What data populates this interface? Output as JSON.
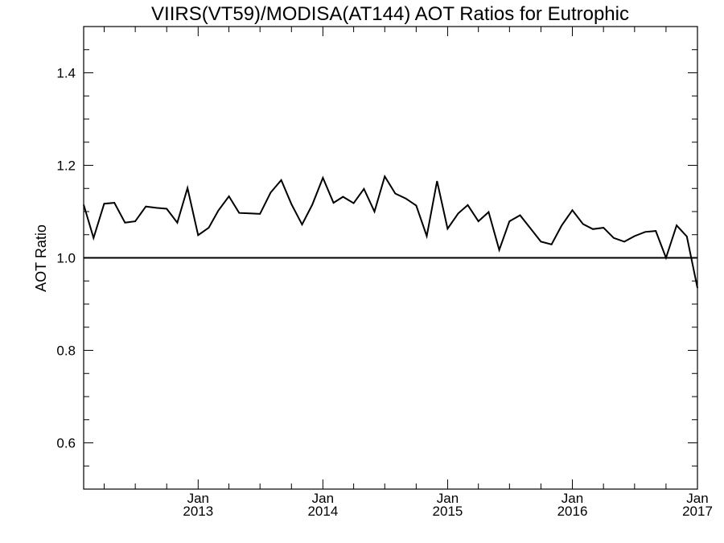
{
  "chart_data": {
    "type": "line",
    "title": "VIIRS(VT59)/MODISA(AT144)  AOT Ratios for Eutrophic",
    "xlabel": "",
    "ylabel": "AOT Ratio",
    "ylim": [
      0.5,
      1.5
    ],
    "xlim": [
      "2012-02-01",
      "2017-01-01"
    ],
    "xticks": [
      {
        "date": "2013-01-01",
        "line1": "Jan",
        "line2": "2013"
      },
      {
        "date": "2014-01-01",
        "line1": "Jan",
        "line2": "2014"
      },
      {
        "date": "2015-01-01",
        "line1": "Jan",
        "line2": "2015"
      },
      {
        "date": "2016-01-01",
        "line1": "Jan",
        "line2": "2016"
      },
      {
        "date": "2017-01-01",
        "line1": "Jan",
        "line2": "2017"
      }
    ],
    "yticks": [
      0.6,
      0.8,
      1.0,
      1.2,
      1.4
    ],
    "reference_line": 1.0,
    "line_color": "#000000",
    "grid": false,
    "series": [
      {
        "x": [
          "2012-02-01",
          "2012-03-01",
          "2012-04-01",
          "2012-05-01",
          "2012-06-01",
          "2012-07-01",
          "2012-08-01",
          "2012-09-01",
          "2012-10-01",
          "2012-11-01",
          "2012-12-01",
          "2013-01-01",
          "2013-02-01",
          "2013-03-01",
          "2013-04-01",
          "2013-05-01",
          "2013-06-01",
          "2013-07-01",
          "2013-08-01",
          "2013-09-01",
          "2013-10-01",
          "2013-11-01",
          "2013-12-01",
          "2014-01-01",
          "2014-02-01",
          "2014-03-01",
          "2014-04-01",
          "2014-05-01",
          "2014-06-01",
          "2014-07-01",
          "2014-08-01",
          "2014-09-01",
          "2014-10-01",
          "2014-11-01",
          "2014-12-01",
          "2015-01-01",
          "2015-02-01",
          "2015-03-01",
          "2015-04-01",
          "2015-05-01",
          "2015-06-01",
          "2015-07-01",
          "2015-08-01",
          "2015-09-01",
          "2015-10-01",
          "2015-11-01",
          "2015-12-01",
          "2016-01-01",
          "2016-02-01",
          "2016-03-01",
          "2016-04-01",
          "2016-05-01",
          "2016-06-01",
          "2016-07-01",
          "2016-08-01",
          "2016-09-01",
          "2016-10-01",
          "2016-11-01",
          "2016-12-01",
          "2017-01-01"
        ],
        "y": [
          1.115,
          1.043,
          1.117,
          1.119,
          1.076,
          1.079,
          1.111,
          1.108,
          1.106,
          1.076,
          1.151,
          1.049,
          1.065,
          1.102,
          1.133,
          1.097,
          1.096,
          1.095,
          1.141,
          1.168,
          1.116,
          1.072,
          1.115,
          1.173,
          1.119,
          1.132,
          1.118,
          1.149,
          1.1,
          1.176,
          1.139,
          1.128,
          1.113,
          1.047,
          1.166,
          1.063,
          1.096,
          1.114,
          1.079,
          1.099,
          1.017,
          1.079,
          1.092,
          1.063,
          1.035,
          1.029,
          1.07,
          1.103,
          1.073,
          1.062,
          1.065,
          1.043,
          1.035,
          1.047,
          1.056,
          1.058,
          1.0,
          1.07,
          1.046,
          0.935
        ]
      }
    ]
  }
}
